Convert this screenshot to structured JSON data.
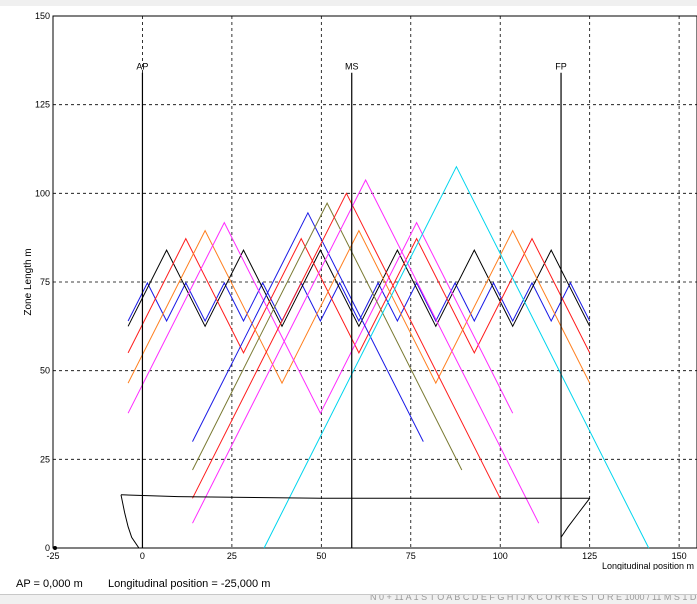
{
  "chart_data": {
    "type": "line",
    "xlabel": "Longitudinal position  m",
    "ylabel": "Zone Length  m",
    "xlim": [
      -25,
      155
    ],
    "ylim": [
      0,
      150
    ],
    "grid": true,
    "x_ticks": [
      -25,
      0,
      25,
      50,
      75,
      100,
      125,
      150
    ],
    "y_ticks": [
      0,
      25,
      50,
      75,
      100,
      125,
      150
    ],
    "markers": [
      {
        "label": "AP",
        "x": 0,
        "y_top": 134
      },
      {
        "label": "MS",
        "x": 58.5,
        "y_top": 134
      },
      {
        "label": "FP",
        "x": 117,
        "y_top": 134
      }
    ],
    "zone_families": [
      {
        "color": "#1a1ae6",
        "extent": [
          -4,
          125
        ],
        "span": 10.75,
        "apex": 64
      },
      {
        "color": "#000000",
        "extent": [
          -4,
          125
        ],
        "span": 21.5,
        "apex": 62.5
      },
      {
        "color": "#ff1c1c",
        "extent": [
          -4,
          125
        ],
        "span": 32.25,
        "apex": 55
      },
      {
        "color": "#ff7f1f",
        "extent": [
          -4,
          125
        ],
        "span": 43,
        "apex": 46.5
      },
      {
        "color": "#ff2bff",
        "extent": [
          -4,
          125
        ],
        "span": 53.75,
        "apex": 38
      },
      {
        "color": "#1a1ae6",
        "extent": [
          14,
          110
        ],
        "span": 64.5,
        "apex": 30
      },
      {
        "color": "#7a7a33",
        "extent": [
          14,
          110
        ],
        "span": 75.25,
        "apex": 22
      },
      {
        "color": "#ff1c1c",
        "extent": [
          14,
          110
        ],
        "span": 86,
        "apex": 14
      },
      {
        "color": "#ff2bff",
        "extent": [
          14,
          110
        ],
        "span": 96.75,
        "apex": 7
      },
      {
        "color": "#00d5ee",
        "extent": [
          34,
          90
        ],
        "span": 107.5,
        "apex": 0
      }
    ],
    "hull_profile": {
      "deck": [
        [
          -6,
          15
        ],
        [
          10,
          14.5
        ],
        [
          50,
          14
        ],
        [
          90,
          14
        ],
        [
          125,
          14
        ]
      ],
      "stern": [
        [
          -6,
          15
        ],
        [
          -5,
          10
        ],
        [
          -4,
          6
        ],
        [
          -3,
          3
        ],
        [
          -1,
          0
        ],
        [
          5,
          0
        ]
      ],
      "bow": [
        [
          125,
          14
        ],
        [
          122,
          10
        ],
        [
          119,
          6
        ],
        [
          117,
          3
        ],
        [
          117,
          0
        ]
      ]
    }
  },
  "status": {
    "ap_text": "AP =  0,000 m",
    "longitudinal_text": "Longitudinal position =  -25,000 m",
    "footer_text": "N 0 +  11 A   1  S T O    A B C D E F G H I J K   C O R R E S T O R E  1000 / 11 M S  1  D"
  }
}
